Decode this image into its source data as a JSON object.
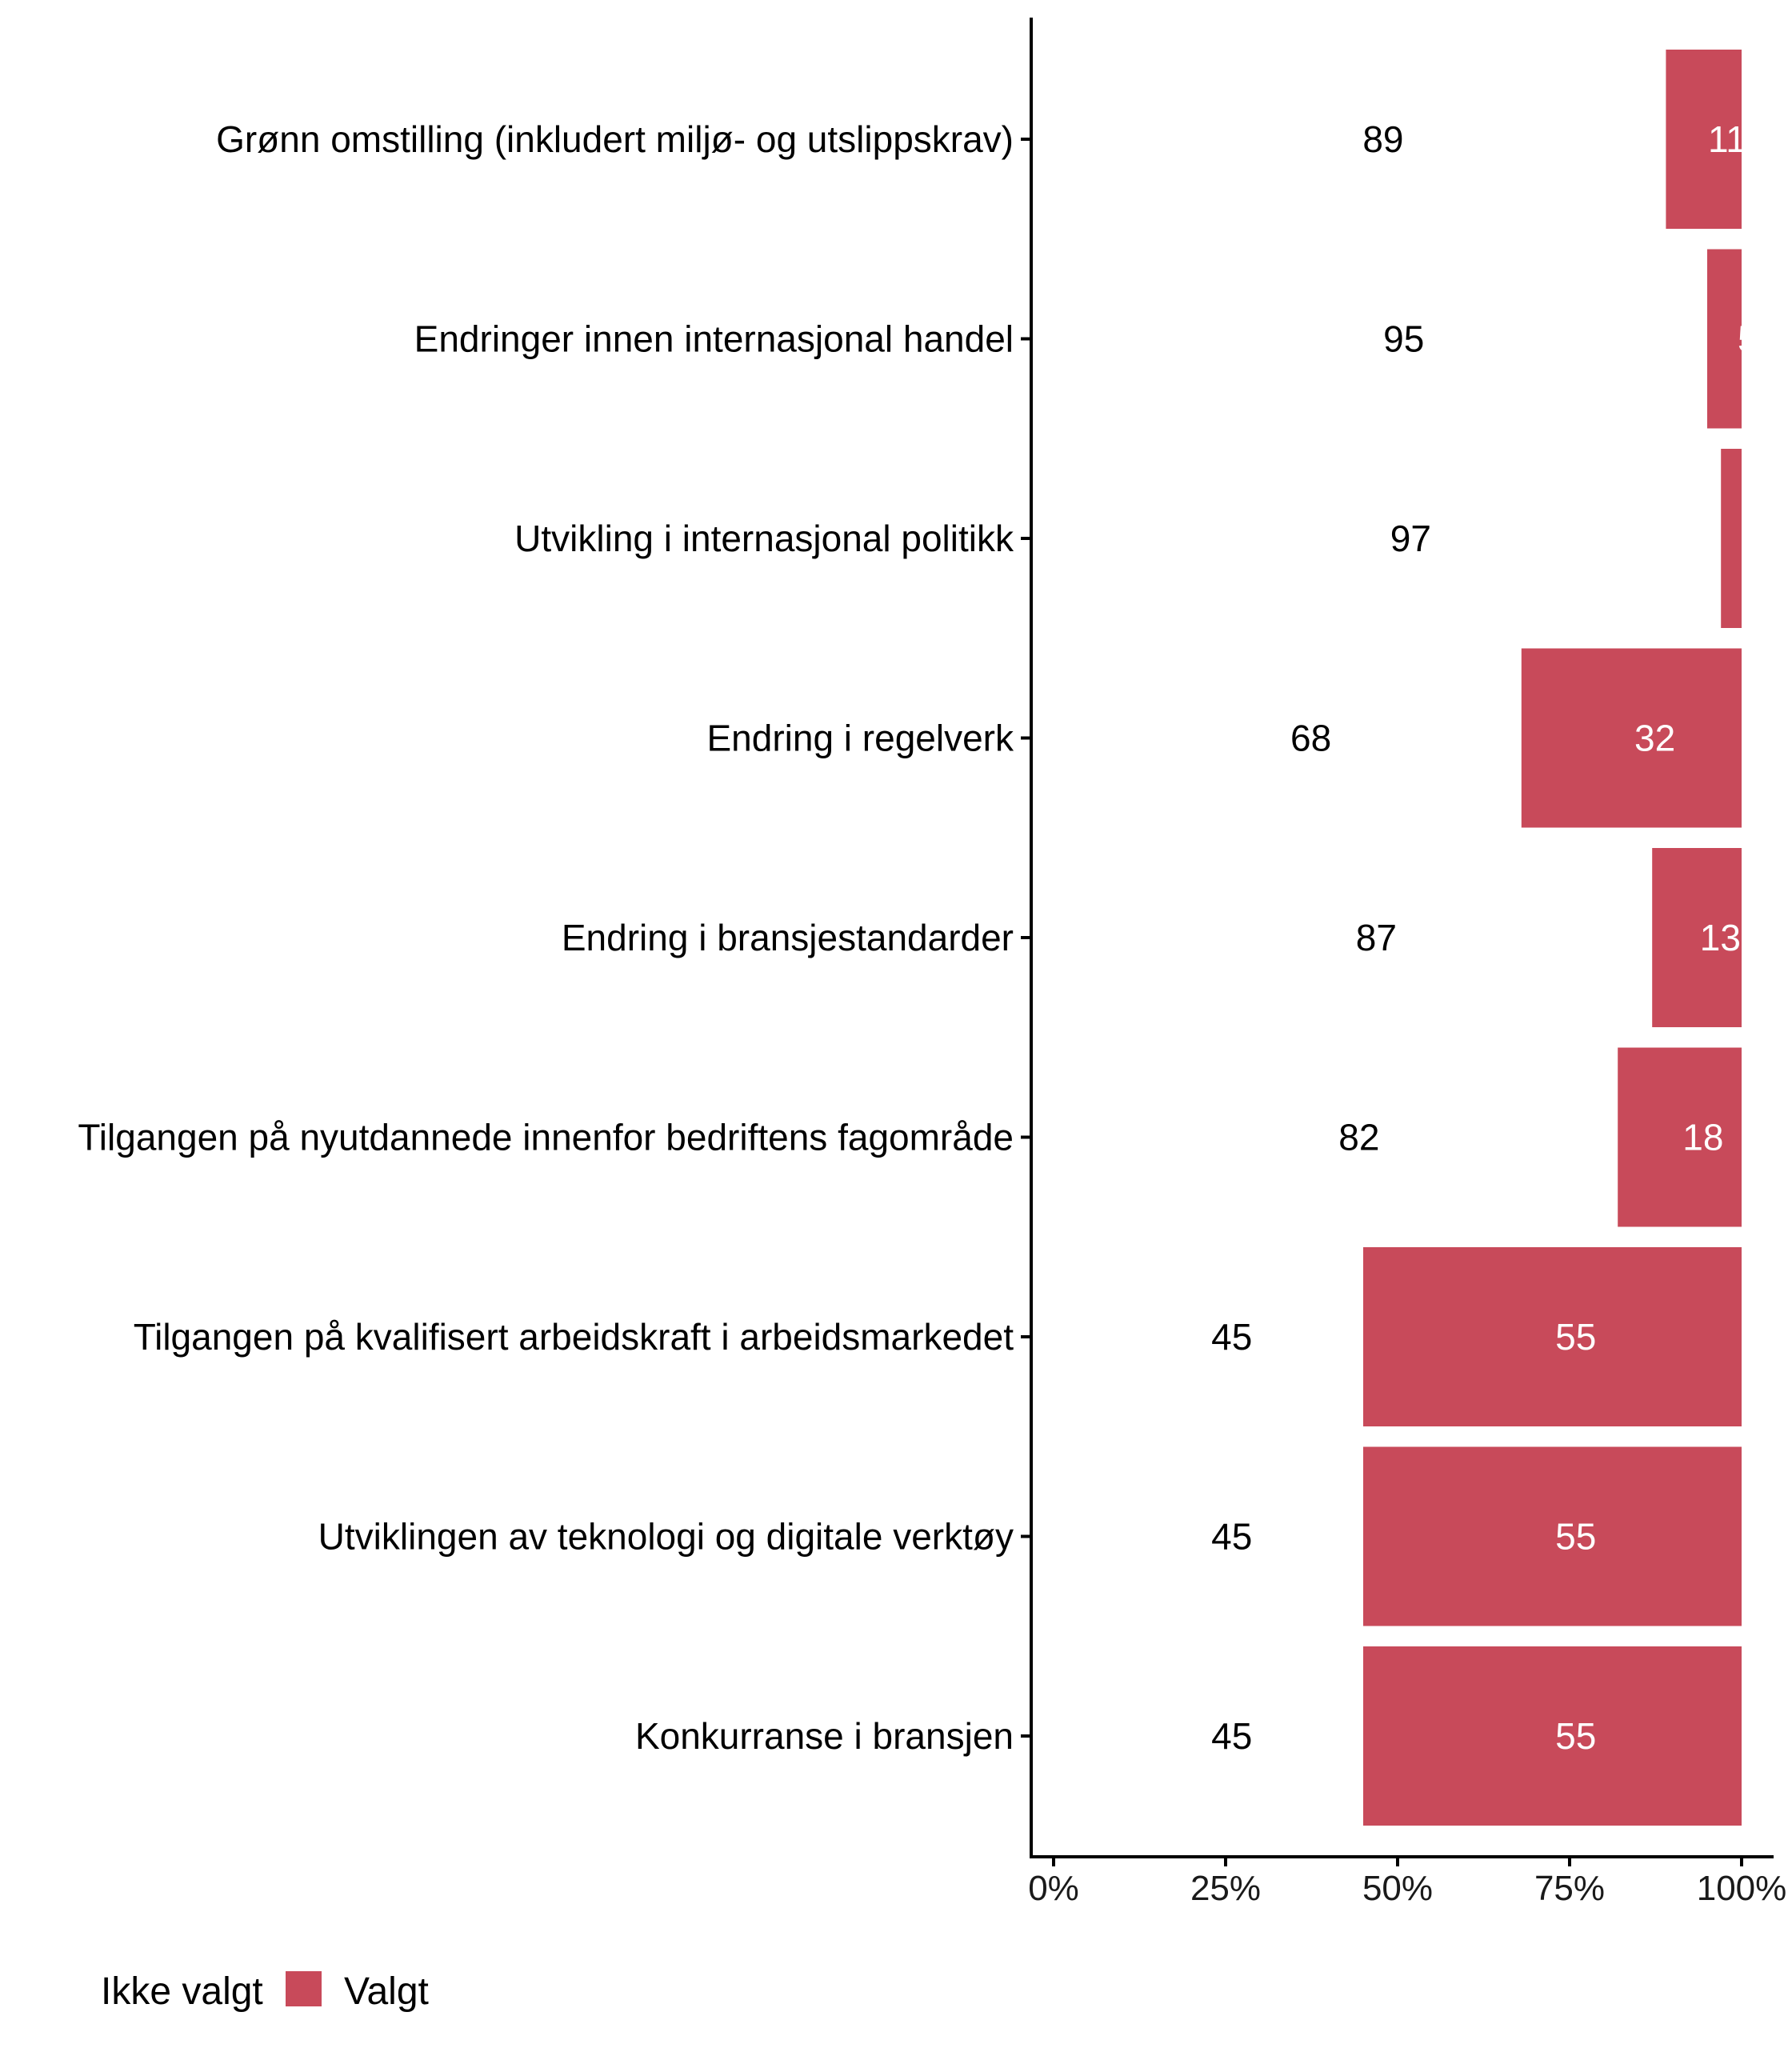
{
  "chart_data": {
    "type": "bar",
    "orientation": "horizontal",
    "stacked": true,
    "title": "",
    "xlabel": "",
    "ylabel": "",
    "xlim": [
      0,
      100
    ],
    "x_unit": "percent",
    "grid": false,
    "legend_position": "bottom-left",
    "categories": [
      "Grønn omstilling (inkludert miljø- og utslippskrav)",
      "Endringer innen internasjonal handel",
      "Utvikling i internasjonal politikk",
      "Endring i regelverk",
      "Endring i bransjestandarder",
      "Tilgangen på nyutdannede innenfor bedriftens fagområde",
      "Tilgangen på kvalifisert arbeidskraft i arbeidsmarkedet",
      "Utviklingen av teknologi og digitale verktøy",
      "Konkurranse i bransjen"
    ],
    "series": [
      {
        "name": "Ikke valgt",
        "color": "#ffffff",
        "values": [
          89,
          95,
          97,
          68,
          87,
          82,
          45,
          45,
          45
        ]
      },
      {
        "name": "Valgt",
        "color": "#C84A5A",
        "values": [
          11,
          5,
          3,
          32,
          13,
          18,
          55,
          55,
          55
        ]
      }
    ],
    "x_ticks": [
      "0%",
      "25%",
      "50%",
      "75%",
      "100%"
    ],
    "x_tick_values": [
      0,
      25,
      50,
      75,
      100
    ]
  },
  "legend": {
    "items": [
      {
        "label": "Ikke valgt",
        "color": "#ffffff"
      },
      {
        "label": "Valgt",
        "color": "#C84A5A"
      }
    ]
  }
}
